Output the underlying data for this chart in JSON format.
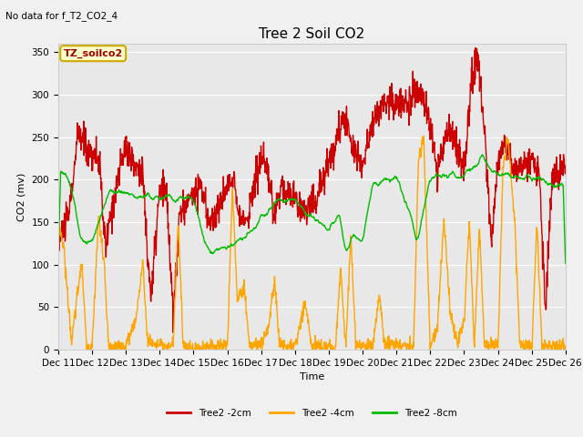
{
  "title": "Tree 2 Soil CO2",
  "top_left_note": "No data for f_T2_CO2_4",
  "annotation_box": "TZ_soilco2",
  "xlabel": "Time",
  "ylabel": "CO2 (mv)",
  "ylim": [
    0,
    360
  ],
  "yticks": [
    0,
    50,
    100,
    150,
    200,
    250,
    300,
    350
  ],
  "xtick_labels": [
    "Dec 11",
    "Dec 12",
    "Dec 13",
    "Dec 14",
    "Dec 15",
    "Dec 16",
    "Dec 17",
    "Dec 18",
    "Dec 19",
    "Dec 20",
    "Dec 21",
    "Dec 22",
    "Dec 23",
    "Dec 24",
    "Dec 25",
    "Dec 26"
  ],
  "line_colors": [
    "#cc0000",
    "#ffa500",
    "#00bb00"
  ],
  "line_labels": [
    "Tree2 -2cm",
    "Tree2 -4cm",
    "Tree2 -8cm"
  ],
  "line_width": 1.0,
  "background_color": "#f0f0f0",
  "plot_bg_color": "#e8e8e8",
  "title_fontsize": 11,
  "label_fontsize": 8,
  "tick_fontsize": 7.5,
  "note_fontsize": 7.5,
  "annot_fontsize": 8
}
